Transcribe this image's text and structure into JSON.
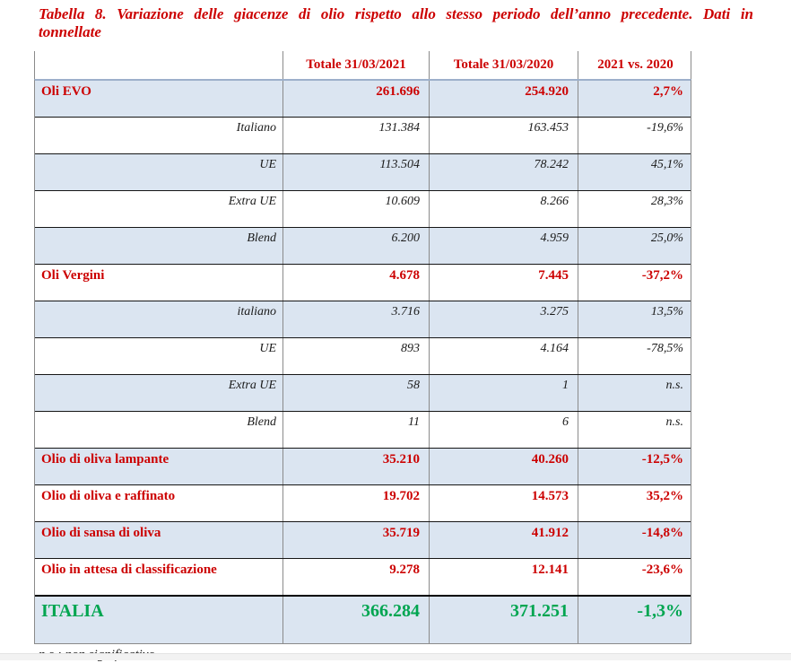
{
  "title": {
    "line1": "Tabella 8. Variazione delle giacenze di olio rispetto allo stesso periodo dell’anno precedente. Dati in",
    "line2": "tonnellate"
  },
  "table": {
    "columns": [
      "Totale 31/03/2021",
      "Totale 31/03/2020",
      "2021 vs. 2020"
    ],
    "rows": [
      {
        "type": "group",
        "label": "Oli EVO",
        "v2021": "261.696",
        "v2020": "254.920",
        "delta": "2,7%"
      },
      {
        "type": "sub",
        "label": "Italiano",
        "v2021": "131.384",
        "v2020": "163.453",
        "delta": "-19,6%"
      },
      {
        "type": "sub",
        "label": "UE",
        "v2021": "113.504",
        "v2020": "78.242",
        "delta": "45,1%"
      },
      {
        "type": "sub",
        "label": "Extra UE",
        "v2021": "10.609",
        "v2020": "8.266",
        "delta": "28,3%"
      },
      {
        "type": "sub",
        "label": "Blend",
        "v2021": "6.200",
        "v2020": "4.959",
        "delta": "25,0%"
      },
      {
        "type": "group",
        "label": "Oli Vergini",
        "v2021": "4.678",
        "v2020": "7.445",
        "delta": "-37,2%"
      },
      {
        "type": "sub",
        "label": "italiano",
        "v2021": "3.716",
        "v2020": "3.275",
        "delta": "13,5%"
      },
      {
        "type": "sub",
        "label": "UE",
        "v2021": "893",
        "v2020": "4.164",
        "delta": "-78,5%"
      },
      {
        "type": "sub",
        "label": "Extra UE",
        "v2021": "58",
        "v2020": "1",
        "delta": "n.s."
      },
      {
        "type": "sub",
        "label": "Blend",
        "v2021": "11",
        "v2020": "6",
        "delta": "n.s."
      },
      {
        "type": "group",
        "label": "Olio di oliva lampante",
        "v2021": "35.210",
        "v2020": "40.260",
        "delta": "-12,5%"
      },
      {
        "type": "group",
        "label": "Olio di oliva e raffinato",
        "v2021": "19.702",
        "v2020": "14.573",
        "delta": "35,2%"
      },
      {
        "type": "group",
        "label": "Olio di sansa di oliva",
        "v2021": "35.719",
        "v2020": "41.912",
        "delta": "-14,8%"
      },
      {
        "type": "group",
        "label": "Olio in attesa di classificazione",
        "v2021": "9.278",
        "v2020": "12.141",
        "delta": "-23,6%"
      },
      {
        "type": "total",
        "label": "ITALIA",
        "v2021": "366.284",
        "v2020": "371.251",
        "delta": "-1,3%"
      }
    ]
  },
  "footnote": "n.s.: non significativo",
  "colors": {
    "accent_red": "#cc0000",
    "total_green": "#00a550",
    "row_highlight_blue": "#dbe5f1",
    "grid_gray": "#8a8a8a"
  }
}
